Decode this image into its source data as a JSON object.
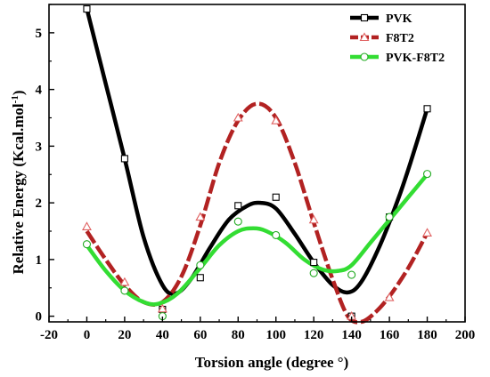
{
  "chart_data": {
    "type": "line",
    "xlabel": "Torsion angle (degree °)",
    "ylabel": "Relative Energy (Kcal.mol",
    "ylabel_sup": "-1",
    "ylabel_end": ")",
    "xlim": [
      -20,
      200
    ],
    "ylim": [
      -0.1,
      5.5
    ],
    "xticks": [
      -20,
      0,
      20,
      40,
      60,
      80,
      100,
      120,
      140,
      160,
      180,
      200
    ],
    "yticks": [
      0,
      1,
      2,
      3,
      4,
      5
    ],
    "legend_position": "top-right",
    "series": [
      {
        "name": "PVK",
        "color": "#000000",
        "marker": "square",
        "x": [
          0,
          20,
          40,
          60,
          80,
          100,
          120,
          140,
          160,
          180
        ],
        "points": [
          5.42,
          2.78,
          0.12,
          0.68,
          1.95,
          2.1,
          0.95,
          0.0,
          1.75,
          3.66
        ],
        "curve": [
          [
            0,
            5.42
          ],
          [
            10,
            4.1
          ],
          [
            20,
            2.78
          ],
          [
            30,
            1.4
          ],
          [
            40,
            0.55
          ],
          [
            47,
            0.4
          ],
          [
            55,
            0.65
          ],
          [
            65,
            1.2
          ],
          [
            75,
            1.7
          ],
          [
            85,
            1.95
          ],
          [
            92,
            2.0
          ],
          [
            100,
            1.9
          ],
          [
            110,
            1.45
          ],
          [
            120,
            0.95
          ],
          [
            130,
            0.55
          ],
          [
            138,
            0.42
          ],
          [
            145,
            0.6
          ],
          [
            155,
            1.25
          ],
          [
            165,
            2.1
          ],
          [
            172,
            2.8
          ],
          [
            180,
            3.66
          ]
        ]
      },
      {
        "name": "F8T2",
        "color": "#b22222",
        "marker": "triangle",
        "x": [
          0,
          20,
          40,
          60,
          80,
          100,
          120,
          140,
          160,
          180
        ],
        "points": [
          1.58,
          0.6,
          0.13,
          1.75,
          3.5,
          3.45,
          1.7,
          0.0,
          0.33,
          1.47
        ],
        "curve": [
          [
            0,
            1.5
          ],
          [
            10,
            1.0
          ],
          [
            20,
            0.55
          ],
          [
            30,
            0.25
          ],
          [
            40,
            0.25
          ],
          [
            50,
            0.7
          ],
          [
            60,
            1.6
          ],
          [
            70,
            2.7
          ],
          [
            80,
            3.45
          ],
          [
            90,
            3.75
          ],
          [
            100,
            3.5
          ],
          [
            110,
            2.7
          ],
          [
            120,
            1.65
          ],
          [
            130,
            0.65
          ],
          [
            138,
            0.0
          ],
          [
            145,
            -0.1
          ],
          [
            152,
            0.05
          ],
          [
            160,
            0.35
          ],
          [
            170,
            0.85
          ],
          [
            180,
            1.47
          ]
        ]
      },
      {
        "name": "PVK-F8T2",
        "color": "#33dd33",
        "marker": "circle",
        "x": [
          0,
          20,
          40,
          60,
          80,
          100,
          120,
          140,
          160,
          180
        ],
        "points": [
          1.27,
          0.45,
          0.0,
          0.9,
          1.67,
          1.43,
          0.76,
          0.73,
          1.75,
          2.51
        ],
        "curve": [
          [
            0,
            1.25
          ],
          [
            10,
            0.8
          ],
          [
            20,
            0.45
          ],
          [
            30,
            0.25
          ],
          [
            38,
            0.22
          ],
          [
            48,
            0.4
          ],
          [
            60,
            0.85
          ],
          [
            70,
            1.25
          ],
          [
            80,
            1.5
          ],
          [
            88,
            1.55
          ],
          [
            95,
            1.5
          ],
          [
            105,
            1.3
          ],
          [
            115,
            1.0
          ],
          [
            125,
            0.82
          ],
          [
            133,
            0.8
          ],
          [
            140,
            0.9
          ],
          [
            150,
            1.3
          ],
          [
            160,
            1.7
          ],
          [
            170,
            2.1
          ],
          [
            180,
            2.5
          ]
        ]
      }
    ]
  }
}
